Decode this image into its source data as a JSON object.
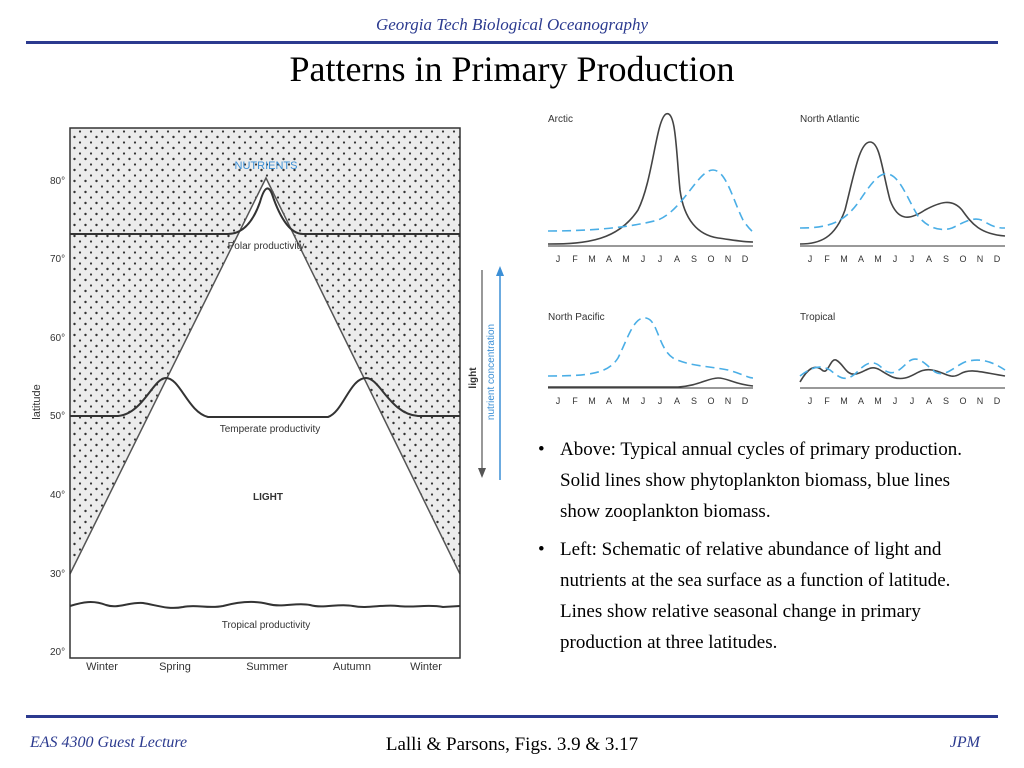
{
  "header": {
    "title": "Georgia Tech Biological Oceanography"
  },
  "slide": {
    "title": "Patterns in Primary Production"
  },
  "left_figure": {
    "y_axis_label": "latitude",
    "y_ticks": [
      "80°",
      "70°",
      "60°",
      "50°",
      "40°",
      "30°",
      "20°"
    ],
    "x_ticks": [
      "Winter",
      "Spring",
      "Summer",
      "Autumn",
      "Winter"
    ],
    "nutrients_label": "NUTRIENTS",
    "polar_label": "Polar productivity",
    "temperate_label": "Temperate productivity",
    "light_label": "LIGHT",
    "tropical_label": "Tropical productivity",
    "side_light_label": "light",
    "side_nutrient_label": "nutrient concentration",
    "colors": {
      "nutrients": "#3b8fd6",
      "stipple": "#e6e6e6",
      "axis": "#333333"
    }
  },
  "right_figure": {
    "months": [
      "J",
      "F",
      "M",
      "A",
      "M",
      "J",
      "J",
      "A",
      "S",
      "O",
      "N",
      "D"
    ],
    "panels": [
      {
        "title": "Arctic"
      },
      {
        "title": "North Atlantic"
      },
      {
        "title": "North Pacific"
      },
      {
        "title": "Tropical"
      }
    ],
    "colors": {
      "phytoplankton": "#444444",
      "zooplankton": "#4aaee6"
    }
  },
  "bullets": [
    "Above:  Typical annual cycles of primary production.  Solid lines show phytoplankton biomass, blue lines show zooplankton biomass.",
    "Left:  Schematic of relative abundance of light and nutrients at the sea surface as a function of latitude. Lines show relative seasonal change in primary production at three latitudes."
  ],
  "bullet_marker": "•",
  "footer": {
    "left": "EAS 4300 Guest Lecture",
    "center": "Lalli & Parsons, Figs. 3.9 & 3.17",
    "right": "JPM"
  }
}
